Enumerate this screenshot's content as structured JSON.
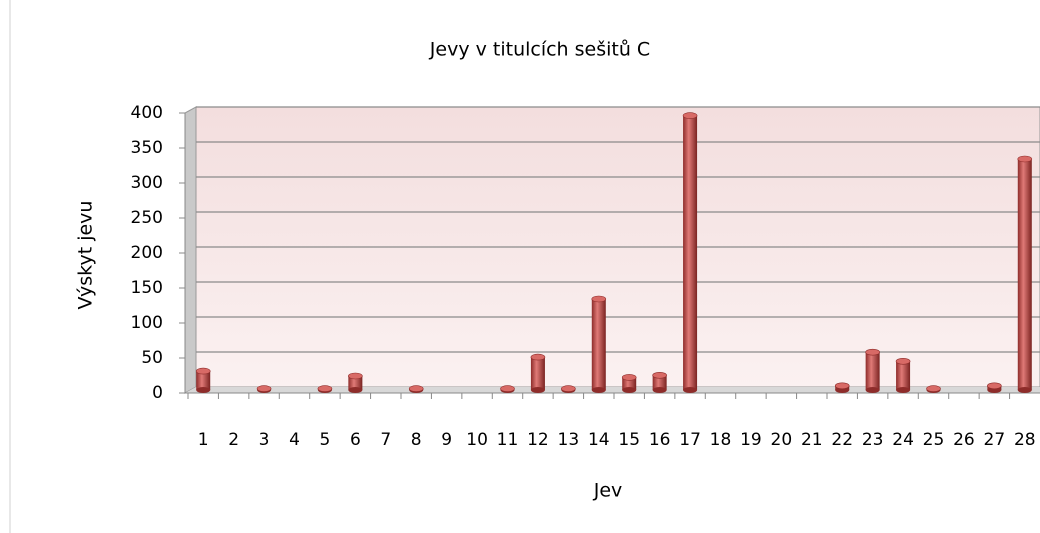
{
  "chart_data": {
    "type": "bar",
    "title": "Jevy v titulcích sešitů C",
    "x_label": "Jev",
    "y_label": "Výskyt jevu",
    "categories": [
      "1",
      "2",
      "3",
      "4",
      "5",
      "6",
      "7",
      "8",
      "9",
      "10",
      "11",
      "12",
      "13",
      "14",
      "15",
      "16",
      "17",
      "18",
      "19",
      "20",
      "21",
      "22",
      "23",
      "24",
      "25",
      "26",
      "27",
      "28"
    ],
    "values": [
      27,
      0,
      2,
      0,
      2,
      20,
      0,
      2,
      0,
      0,
      2,
      47,
      2,
      130,
      18,
      21,
      392,
      0,
      0,
      0,
      0,
      6,
      54,
      41,
      2,
      0,
      6,
      330
    ],
    "color": "#c0504d",
    "ylim": [
      0,
      400
    ],
    "yticks": [
      0,
      50,
      100,
      150,
      200,
      250,
      300,
      350,
      400
    ],
    "grid": true
  }
}
